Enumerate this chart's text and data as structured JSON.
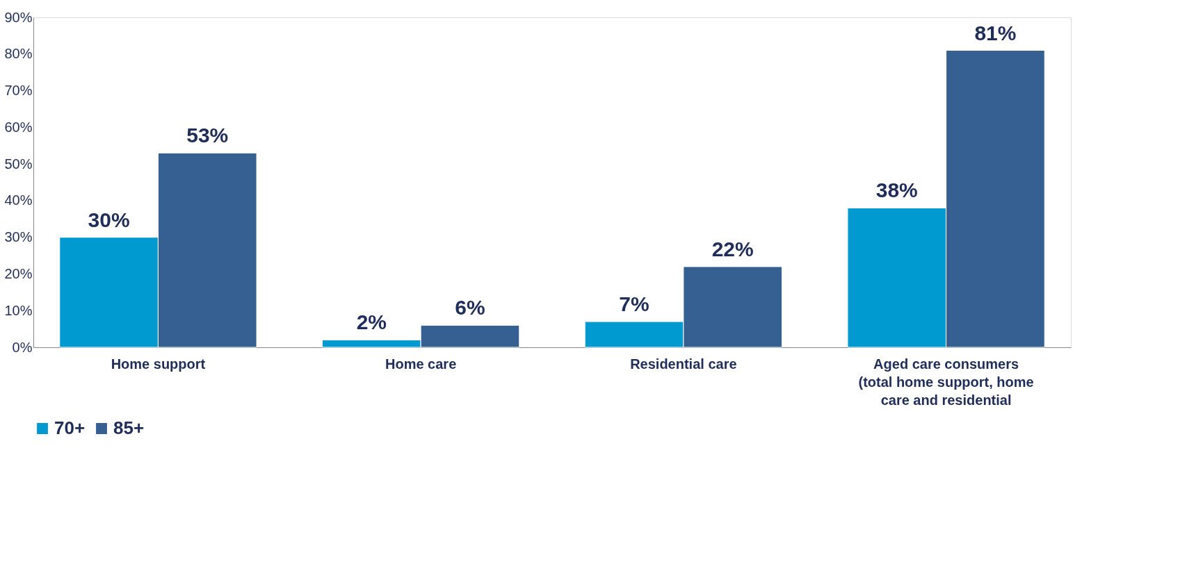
{
  "chart_data": {
    "type": "bar",
    "categories": [
      "Home support",
      "Home care",
      "Residential care",
      "Aged care consumers (total home support, home care and residential"
    ],
    "series": [
      {
        "name": "70+",
        "color": "#009ad0",
        "values": [
          30,
          2,
          7,
          38
        ],
        "value_labels": [
          "30%",
          "2%",
          "7%",
          "38%"
        ]
      },
      {
        "name": "85+",
        "color": "#376092",
        "values": [
          53,
          6,
          22,
          81
        ],
        "value_labels": [
          "53%",
          "6%",
          "22%",
          "81%"
        ]
      }
    ],
    "ylim": [
      0,
      90
    ],
    "yticks": [
      {
        "value": 0,
        "label": "0%"
      },
      {
        "value": 10,
        "label": "10%"
      },
      {
        "value": 20,
        "label": "20%"
      },
      {
        "value": 30,
        "label": "30%"
      },
      {
        "value": 40,
        "label": "40%"
      },
      {
        "value": 50,
        "label": "50%"
      },
      {
        "value": 60,
        "label": "60%"
      },
      {
        "value": 70,
        "label": "70%"
      },
      {
        "value": 80,
        "label": "80%"
      },
      {
        "value": 90,
        "label": "90%"
      }
    ],
    "grid": false,
    "legend": "bottom"
  }
}
